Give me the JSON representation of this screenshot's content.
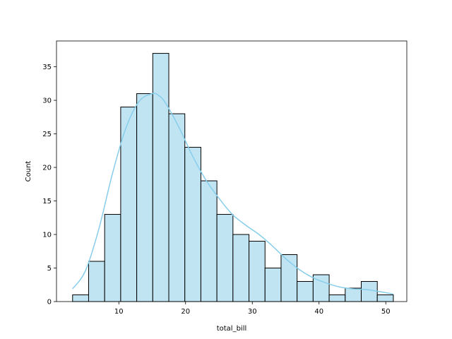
{
  "chart_data": {
    "type": "bar",
    "title": "",
    "xlabel": "total_bill",
    "ylabel": "Count",
    "xlim": [
      0.66,
      53.15
    ],
    "ylim": [
      0,
      38.85
    ],
    "xticks": [
      10,
      20,
      30,
      40,
      50
    ],
    "yticks": [
      0,
      5,
      10,
      15,
      20,
      25,
      30,
      35
    ],
    "bin_edges": [
      3.07,
      5.473,
      7.876,
      10.279,
      12.682,
      15.085,
      17.488,
      19.891,
      22.294,
      24.697,
      27.1,
      29.503,
      31.906,
      34.309,
      36.712,
      39.115,
      41.518,
      43.921,
      46.324,
      48.727,
      51.13
    ],
    "counts": [
      1,
      6,
      13,
      29,
      31,
      37,
      28,
      23,
      18,
      13,
      10,
      9,
      5,
      7,
      3,
      4,
      1,
      2,
      3,
      1
    ],
    "kde": {
      "x": [
        3.07,
        5,
        7,
        9,
        11,
        13,
        15,
        16,
        17,
        19,
        21,
        23,
        25,
        27,
        29,
        31,
        33,
        35,
        37,
        39,
        41,
        43,
        45,
        47,
        49,
        51.13
      ],
      "y": [
        1.9,
        4.6,
        10.8,
        18.9,
        25.7,
        29.8,
        31.0,
        30.7,
        29.6,
        26.0,
        21.8,
        18.2,
        15.4,
        13.0,
        11.4,
        10.0,
        8.3,
        6.4,
        4.8,
        3.6,
        2.8,
        2.2,
        1.9,
        1.8,
        1.5,
        1.1
      ]
    },
    "grid": false,
    "colors": {
      "bar_fill": "#c1e4f3",
      "bar_edge": "#000000",
      "kde_line": "#87ceeb"
    }
  }
}
